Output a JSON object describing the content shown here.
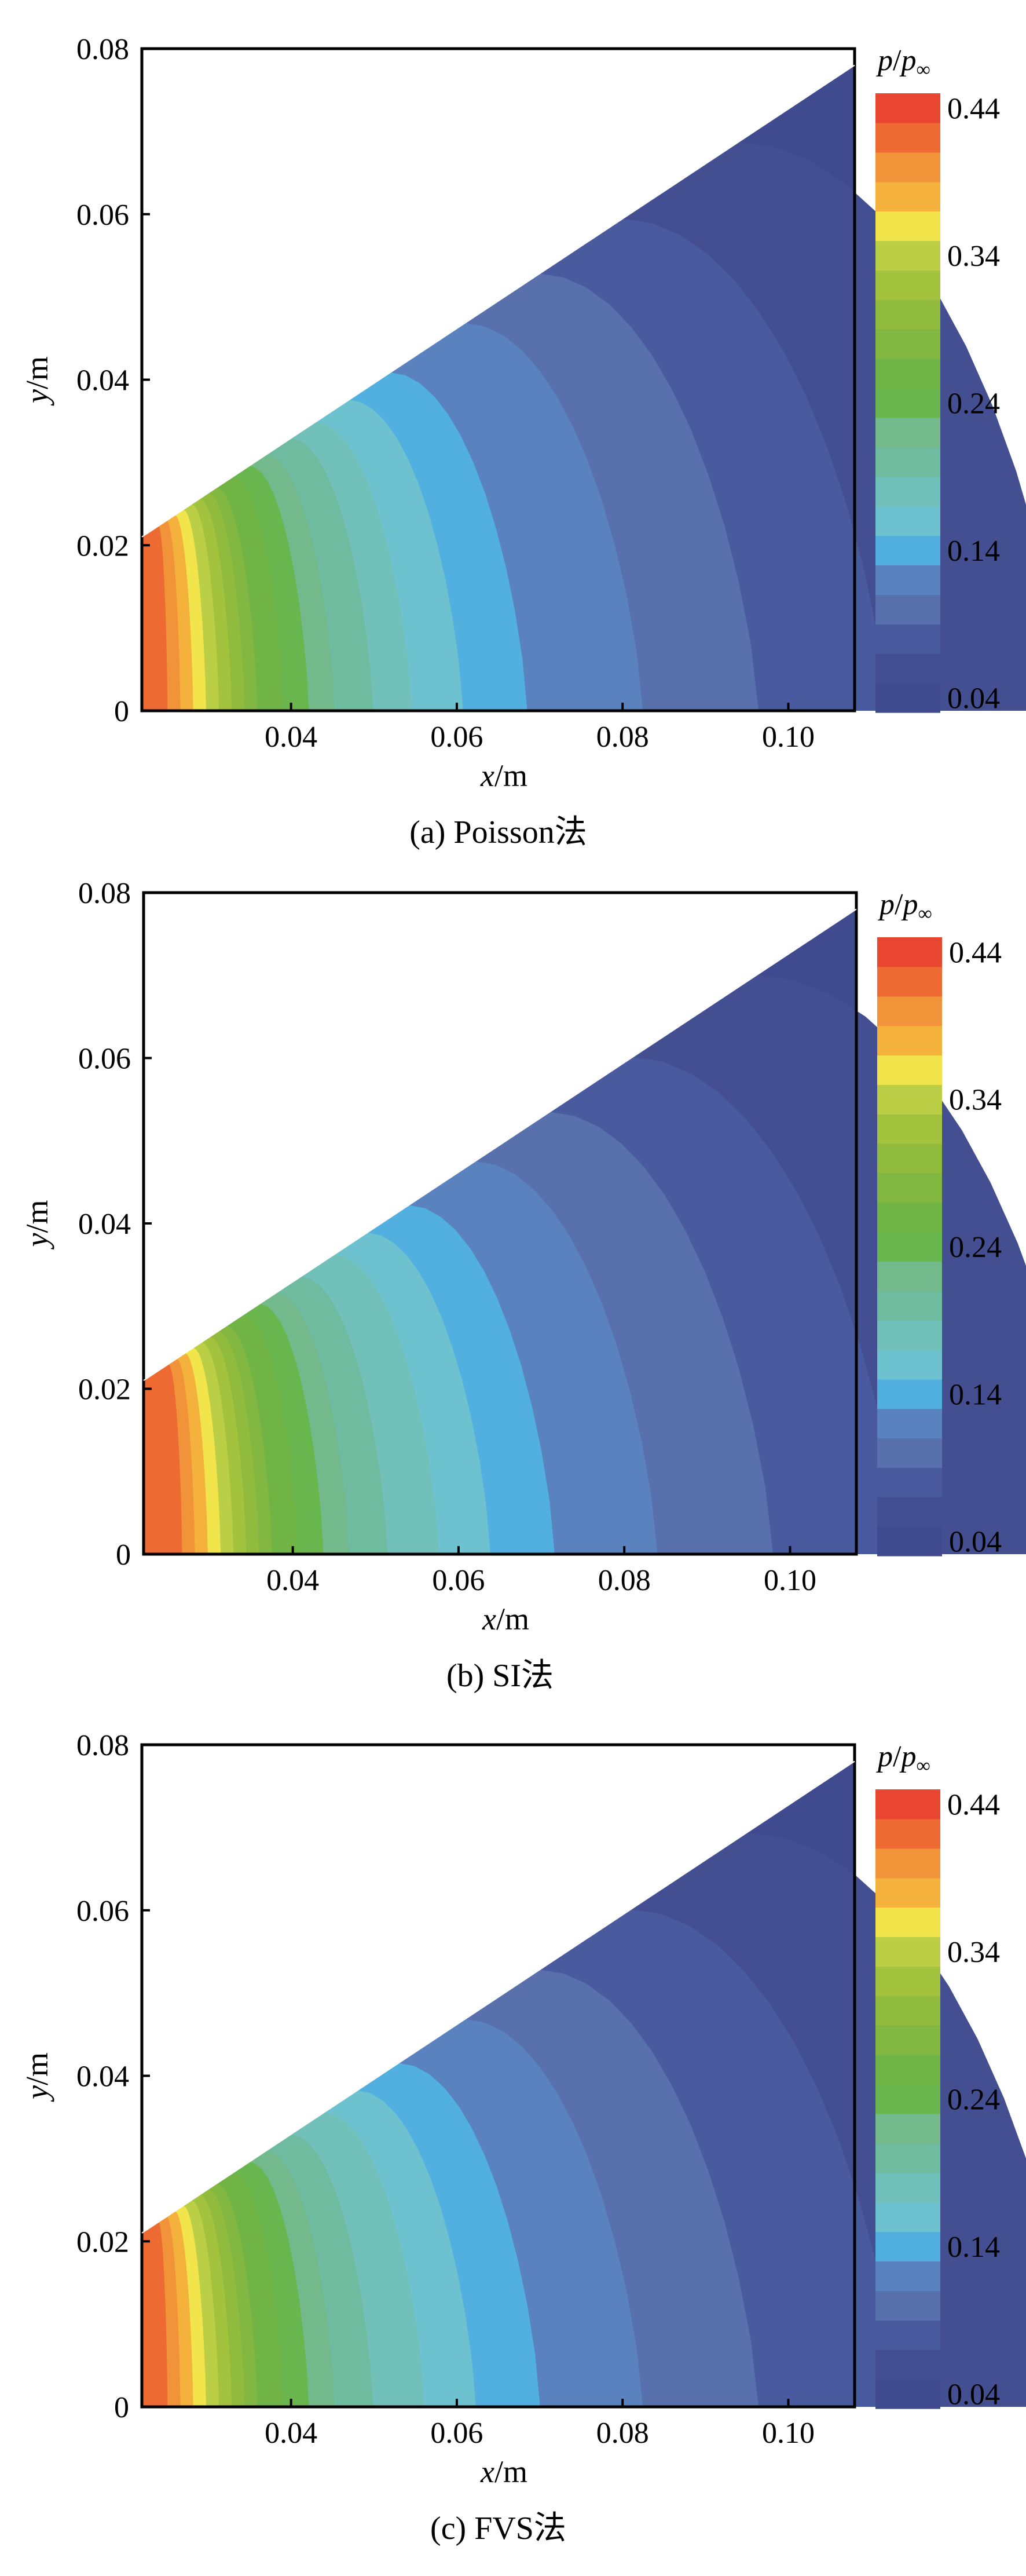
{
  "chart_data": [
    {
      "type": "heatmap",
      "caption": "(a) Poisson法",
      "xlabel": {
        "var": "x",
        "unit": "/m"
      },
      "ylabel": {
        "var": "y",
        "unit": "/m"
      },
      "x_ticks": [
        "0.04",
        "0.06",
        "0.08",
        "0.10"
      ],
      "x_tick_values": [
        0.04,
        0.06,
        0.08,
        0.1
      ],
      "y_ticks": [
        "0",
        "0.02",
        "0.04",
        "0.06",
        "0.08"
      ],
      "y_tick_values": [
        0,
        0.02,
        0.04,
        0.06,
        0.08
      ],
      "xlim": [
        0.022,
        0.108
      ],
      "ylim": [
        0,
        0.08
      ],
      "domain": "wedge: lower wall y = 0, upper wall from (0.022, 0.021) to (0.108, 0.078)",
      "colorbar": {
        "title": {
          "var": "p",
          "sub": "∞"
        },
        "tick_labels": [
          "0.44",
          "0.34",
          "0.24",
          "0.14",
          "0.04"
        ],
        "min": 0.04,
        "max": 0.44,
        "levels": 21
      },
      "contour_levels": [
        {
          "p": 0.04,
          "x_at_wall": 0.108
        },
        {
          "p": 0.06,
          "x_at_wall": 0.094
        },
        {
          "p": 0.08,
          "x_at_wall": 0.08
        },
        {
          "p": 0.1,
          "x_at_wall": 0.07
        },
        {
          "p": 0.12,
          "x_at_wall": 0.061
        },
        {
          "p": 0.14,
          "x_at_wall": 0.052
        },
        {
          "p": 0.16,
          "x_at_wall": 0.047
        },
        {
          "p": 0.18,
          "x_at_wall": 0.043
        },
        {
          "p": 0.2,
          "x_at_wall": 0.04
        },
        {
          "p": 0.22,
          "x_at_wall": 0.037
        },
        {
          "p": 0.24,
          "x_at_wall": 0.035
        },
        {
          "p": 0.26,
          "x_at_wall": 0.033
        },
        {
          "p": 0.28,
          "x_at_wall": 0.031
        },
        {
          "p": 0.3,
          "x_at_wall": 0.03
        },
        {
          "p": 0.32,
          "x_at_wall": 0.029
        },
        {
          "p": 0.34,
          "x_at_wall": 0.028
        },
        {
          "p": 0.36,
          "x_at_wall": 0.027
        },
        {
          "p": 0.38,
          "x_at_wall": 0.026
        },
        {
          "p": 0.4,
          "x_at_wall": 0.025
        },
        {
          "p": 0.42,
          "x_at_wall": 0.024
        }
      ]
    },
    {
      "type": "heatmap",
      "caption": "(b) SI法",
      "xlabel": {
        "var": "x",
        "unit": "/m"
      },
      "ylabel": {
        "var": "y",
        "unit": "/m"
      },
      "x_ticks": [
        "0.04",
        "0.06",
        "0.08",
        "0.10"
      ],
      "x_tick_values": [
        0.04,
        0.06,
        0.08,
        0.1
      ],
      "y_ticks": [
        "0",
        "0.02",
        "0.04",
        "0.06",
        "0.08"
      ],
      "y_tick_values": [
        0,
        0.02,
        0.04,
        0.06,
        0.08
      ],
      "xlim": [
        0.022,
        0.108
      ],
      "ylim": [
        0,
        0.08
      ],
      "domain": "wedge: lower wall y = 0, upper wall from (0.022, 0.021) to (0.108, 0.078)",
      "colorbar": {
        "title": {
          "var": "p",
          "sub": "∞"
        },
        "tick_labels": [
          "0.44",
          "0.34",
          "0.24",
          "0.14",
          "0.04"
        ],
        "min": 0.04,
        "max": 0.44,
        "levels": 21
      },
      "contour_levels": [
        {
          "p": 0.04,
          "x_at_wall": 0.108
        },
        {
          "p": 0.06,
          "x_at_wall": 0.096
        },
        {
          "p": 0.08,
          "x_at_wall": 0.081
        },
        {
          "p": 0.1,
          "x_at_wall": 0.071
        },
        {
          "p": 0.12,
          "x_at_wall": 0.062
        },
        {
          "p": 0.14,
          "x_at_wall": 0.054
        },
        {
          "p": 0.16,
          "x_at_wall": 0.049
        },
        {
          "p": 0.18,
          "x_at_wall": 0.045
        },
        {
          "p": 0.2,
          "x_at_wall": 0.041
        },
        {
          "p": 0.22,
          "x_at_wall": 0.038
        },
        {
          "p": 0.24,
          "x_at_wall": 0.036
        },
        {
          "p": 0.26,
          "x_at_wall": 0.034
        },
        {
          "p": 0.28,
          "x_at_wall": 0.032
        },
        {
          "p": 0.3,
          "x_at_wall": 0.031
        },
        {
          "p": 0.32,
          "x_at_wall": 0.03
        },
        {
          "p": 0.34,
          "x_at_wall": 0.029
        },
        {
          "p": 0.36,
          "x_at_wall": 0.028
        },
        {
          "p": 0.38,
          "x_at_wall": 0.027
        },
        {
          "p": 0.4,
          "x_at_wall": 0.026
        },
        {
          "p": 0.42,
          "x_at_wall": 0.025
        }
      ]
    },
    {
      "type": "heatmap",
      "caption": "(c)  FVS法",
      "xlabel": {
        "var": "x",
        "unit": "/m"
      },
      "ylabel": {
        "var": "y",
        "unit": "/m"
      },
      "x_ticks": [
        "0.04",
        "0.06",
        "0.08",
        "0.10"
      ],
      "x_tick_values": [
        0.04,
        0.06,
        0.08,
        0.1
      ],
      "y_ticks": [
        "0",
        "0.02",
        "0.04",
        "0.06",
        "0.08"
      ],
      "y_tick_values": [
        0,
        0.02,
        0.04,
        0.06,
        0.08
      ],
      "xlim": [
        0.022,
        0.108
      ],
      "ylim": [
        0,
        0.08
      ],
      "domain": "wedge: lower wall y = 0, upper wall from (0.022, 0.021) to (0.108, 0.078)",
      "colorbar": {
        "title": {
          "var": "p",
          "sub": "∞"
        },
        "tick_labels": [
          "0.44",
          "0.34",
          "0.24",
          "0.14",
          "0.04"
        ],
        "min": 0.04,
        "max": 0.44,
        "levels": 21
      },
      "contour_levels": [
        {
          "p": 0.04,
          "x_at_wall": 0.108
        },
        {
          "p": 0.06,
          "x_at_wall": 0.095
        },
        {
          "p": 0.08,
          "x_at_wall": 0.081
        },
        {
          "p": 0.1,
          "x_at_wall": 0.07
        },
        {
          "p": 0.12,
          "x_at_wall": 0.061
        },
        {
          "p": 0.14,
          "x_at_wall": 0.053
        },
        {
          "p": 0.16,
          "x_at_wall": 0.048
        },
        {
          "p": 0.18,
          "x_at_wall": 0.044
        },
        {
          "p": 0.2,
          "x_at_wall": 0.04
        },
        {
          "p": 0.22,
          "x_at_wall": 0.037
        },
        {
          "p": 0.24,
          "x_at_wall": 0.035
        },
        {
          "p": 0.26,
          "x_at_wall": 0.033
        },
        {
          "p": 0.28,
          "x_at_wall": 0.031
        },
        {
          "p": 0.3,
          "x_at_wall": 0.03
        },
        {
          "p": 0.32,
          "x_at_wall": 0.029
        },
        {
          "p": 0.34,
          "x_at_wall": 0.028
        },
        {
          "p": 0.36,
          "x_at_wall": 0.027
        },
        {
          "p": 0.38,
          "x_at_wall": 0.026
        },
        {
          "p": 0.4,
          "x_at_wall": 0.025
        },
        {
          "p": 0.42,
          "x_at_wall": 0.024
        }
      ]
    }
  ],
  "colors": {
    "levels": [
      "#3f4b8e",
      "#434f91",
      "#4a5a9e",
      "#5871ad",
      "#5a82bf",
      "#52b0e0",
      "#6ec2cf",
      "#72c0ba",
      "#6ebba0",
      "#74b98c",
      "#6ab64e",
      "#6fb444",
      "#82b741",
      "#90bb3c",
      "#a3c23e",
      "#bacf46",
      "#f2e54b",
      "#f4b13c",
      "#f19338",
      "#ee6a33",
      "#e84631"
    ],
    "axes": "#000000",
    "background": "#ffffff"
  }
}
